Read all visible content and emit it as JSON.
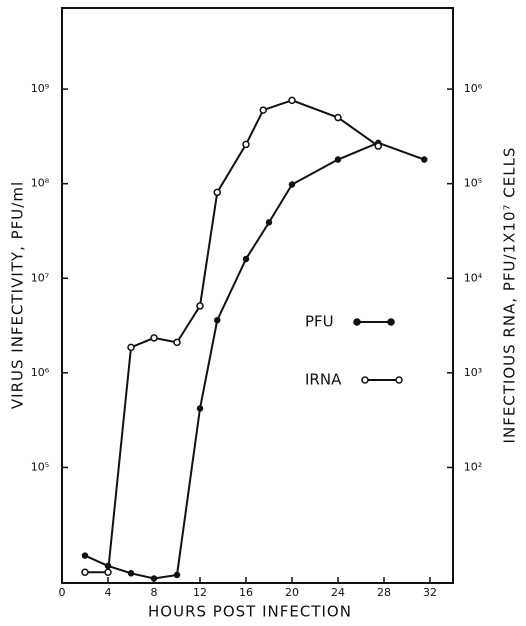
{
  "chart_data": {
    "type": "line",
    "xlabel": "HOURS POST INFECTION",
    "ylabel": "VIRUS INFECTIVITY, PFU/ml",
    "y2label": "INFECTIOUS RNA, PFU/1X10⁷ CELLS",
    "xlim": [
      0,
      34
    ],
    "xticks": [
      0,
      4,
      8,
      12,
      16,
      20,
      24,
      28,
      32
    ],
    "ylim": [
      6000,
      7200000000
    ],
    "log_y": true,
    "yticks": [
      {
        "value": 100000,
        "label": "10⁵"
      },
      {
        "value": 1000000,
        "label": "10⁶"
      },
      {
        "value": 10000000,
        "label": "10⁷"
      },
      {
        "value": 100000000,
        "label": "10⁸"
      },
      {
        "value": 1000000000,
        "label": "10⁹"
      }
    ],
    "y2lim": [
      6,
      7200000
    ],
    "y2ticks": [
      {
        "value": 100,
        "label": "10²"
      },
      {
        "value": 1000,
        "label": "10³"
      },
      {
        "value": 10000,
        "label": "10⁴"
      },
      {
        "value": 100000,
        "label": "10⁵"
      },
      {
        "value": 1000000,
        "label": "10⁶"
      }
    ],
    "legend": "center",
    "series": [
      {
        "name": "PFU",
        "color": "#111111",
        "marker": "filled",
        "x": [
          2,
          4,
          6,
          8,
          10,
          12,
          13.5,
          16,
          18,
          20,
          24,
          27.5,
          31.5
        ],
        "values": [
          11700,
          9100,
          7600,
          6700,
          7300,
          420000,
          3600000,
          16000000,
          39000000,
          98000000,
          180000000,
          270000000,
          180000000
        ]
      },
      {
        "name": "IRNA",
        "color": "#111111",
        "marker": "open",
        "axis": "y2",
        "x": [
          2,
          4,
          6,
          8,
          10,
          12,
          13.5,
          16,
          17.5,
          20,
          24,
          27.5
        ],
        "values": [
          7.8,
          7.8,
          1860,
          2340,
          2100,
          5100,
          81000,
          260000,
          600000,
          760000,
          500000,
          250000
        ]
      }
    ]
  }
}
